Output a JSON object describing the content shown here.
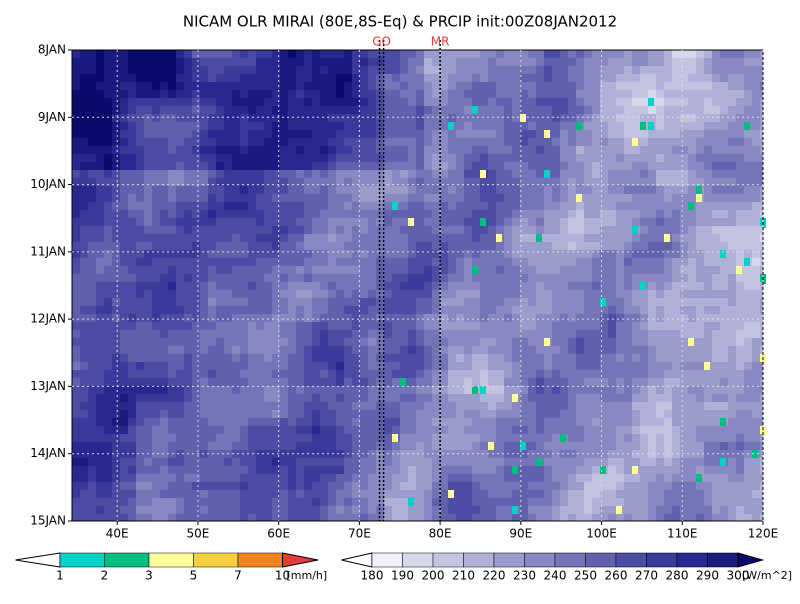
{
  "chart_data": {
    "type": "hovmoller",
    "title": "NICAM OLR MIRAI (80E,8S-Eq) & PRCIP init:00Z08JAN2012",
    "xlim": [
      34.4,
      120
    ],
    "xticks": [
      {
        "value": 40,
        "label": "40E"
      },
      {
        "value": 50,
        "label": "50E"
      },
      {
        "value": 60,
        "label": "60E"
      },
      {
        "value": 70,
        "label": "70E"
      },
      {
        "value": 80,
        "label": "80E"
      },
      {
        "value": 90,
        "label": "90E"
      },
      {
        "value": 100,
        "label": "100E"
      },
      {
        "value": 110,
        "label": "110E"
      },
      {
        "value": 120,
        "label": "120E"
      }
    ],
    "y_categories": [
      "8JAN",
      "9JAN",
      "10JAN",
      "11JAN",
      "12JAN",
      "13JAN",
      "14JAN",
      "15JAN"
    ],
    "grid": true,
    "markers": [
      {
        "label": "GO",
        "x": [
          72.5,
          73
        ]
      },
      {
        "label": "MR",
        "x": [
          80
        ]
      }
    ],
    "precip_scale": {
      "levels": [
        1,
        2,
        3,
        5,
        7,
        10
      ],
      "unit": "[mm/h]",
      "colors": [
        "#ffffff",
        "#00d2c8",
        "#00be82",
        "#ffff9a",
        "#f2d040",
        "#f0821e",
        "#e63c3c"
      ]
    },
    "olr_scale": {
      "levels": [
        180,
        190,
        200,
        210,
        220,
        230,
        240,
        250,
        260,
        270,
        280,
        290,
        300
      ],
      "unit": "[W/m^2]",
      "colors": [
        "#ffffff",
        "#f0f0f8",
        "#d8d8ec",
        "#c4c4e2",
        "#b0b0d8",
        "#9c9ccc",
        "#8888c2",
        "#7474b8",
        "#6060ae",
        "#4c4ca4",
        "#3a3a9a",
        "#282890",
        "#1a1a80",
        "#0a0a6a"
      ]
    }
  }
}
